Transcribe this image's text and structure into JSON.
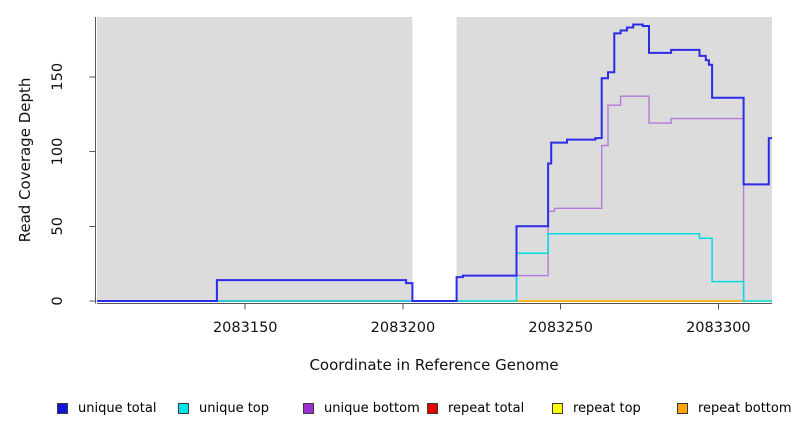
{
  "figure": {
    "xlabel": "Coordinate in Reference Genome",
    "ylabel": "Read Coverage Depth",
    "background_color": "#ffffff",
    "plot_background_color": "#DCDCDC",
    "axis_color": "#555555",
    "text_color": "#111111"
  },
  "chart_data": {
    "type": "line",
    "line_style": "step",
    "title": "",
    "xlabel": "Coordinate in Reference Genome",
    "ylabel": "Read Coverage Depth",
    "xlim": [
      2083103,
      2083317
    ],
    "ylim": [
      0,
      190
    ],
    "x_ticks": [
      2083150,
      2083200,
      2083250,
      2083300
    ],
    "y_ticks": [
      0,
      50,
      100,
      150
    ],
    "grid": false,
    "legend_position": "bottom",
    "plot_background": "#DCDCDC",
    "mask_region": {
      "x0": 2083203,
      "x1": 2083217,
      "color": "#FFFFFF"
    },
    "series": [
      {
        "name": "unique total",
        "color": "#2B2BE8",
        "legend_color": "#1414DD",
        "line_width": 2,
        "points": [
          [
            2083103,
            0
          ],
          [
            2083141,
            14
          ],
          [
            2083201,
            12
          ],
          [
            2083203,
            0
          ],
          [
            2083217,
            16
          ],
          [
            2083219,
            17
          ],
          [
            2083236,
            50
          ],
          [
            2083246,
            92
          ],
          [
            2083247,
            106
          ],
          [
            2083252,
            108
          ],
          [
            2083261,
            109
          ],
          [
            2083263,
            149
          ],
          [
            2083265,
            153
          ],
          [
            2083267,
            179
          ],
          [
            2083269,
            181
          ],
          [
            2083271,
            183
          ],
          [
            2083273,
            185
          ],
          [
            2083276,
            184
          ],
          [
            2083278,
            166
          ],
          [
            2083285,
            168
          ],
          [
            2083294,
            164
          ],
          [
            2083296,
            161
          ],
          [
            2083297,
            158
          ],
          [
            2083298,
            136
          ],
          [
            2083308,
            78
          ],
          [
            2083316,
            109
          ],
          [
            2083317,
            109
          ]
        ]
      },
      {
        "name": "unique top",
        "color": "#00DCE4",
        "legend_color": "#00E5E5",
        "line_width": 1.5,
        "points": [
          [
            2083103,
            0
          ],
          [
            2083236,
            32
          ],
          [
            2083246,
            45
          ],
          [
            2083294,
            42
          ],
          [
            2083298,
            13
          ],
          [
            2083308,
            0
          ],
          [
            2083317,
            0
          ]
        ]
      },
      {
        "name": "unique bottom",
        "color": "#B678DC",
        "legend_color": "#9B2FD0",
        "line_width": 1.4,
        "points": [
          [
            2083103,
            0
          ],
          [
            2083236,
            17
          ],
          [
            2083246,
            60
          ],
          [
            2083248,
            62
          ],
          [
            2083263,
            104
          ],
          [
            2083265,
            131
          ],
          [
            2083269,
            137
          ],
          [
            2083278,
            119
          ],
          [
            2083285,
            122
          ],
          [
            2083308,
            0
          ]
        ]
      },
      {
        "name": "repeat total",
        "color": "#E60000",
        "legend_color": "#E60000",
        "line_width": 1.3,
        "points": [
          [
            2083141,
            0
          ],
          [
            2083202,
            0
          ]
        ]
      },
      {
        "name": "repeat top",
        "color": "#FFFF00",
        "legend_color": "#FFFF00",
        "line_width": 1.3,
        "points": [
          [
            2083217,
            0
          ],
          [
            2083317,
            0
          ]
        ]
      },
      {
        "name": "repeat bottom",
        "color": "#FFA500",
        "legend_color": "#FFA500",
        "line_width": 1.5,
        "points": [
          [
            2083236,
            0
          ],
          [
            2083308,
            0
          ]
        ]
      }
    ]
  }
}
